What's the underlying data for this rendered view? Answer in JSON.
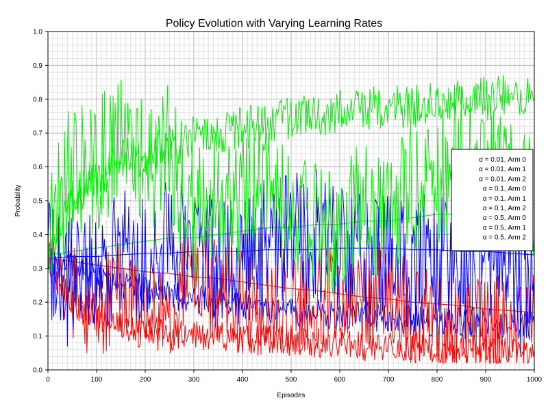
{
  "chart_data": {
    "type": "line",
    "title": "Policy Evolution with Varying Learning Rates",
    "xlabel": "Episodes",
    "ylabel": "Probability",
    "xlim": [
      0,
      1000
    ],
    "ylim": [
      0,
      1.0
    ],
    "x_ticks": [
      "0",
      "100",
      "200",
      "300",
      "400",
      "500",
      "600",
      "700",
      "800",
      "900",
      "1000"
    ],
    "y_ticks": [
      "0.0",
      "0.1",
      "0.2",
      "0.3",
      "0.4",
      "0.5",
      "0.6",
      "0.7",
      "0.8",
      "0.9",
      "1.0"
    ],
    "grid": true,
    "legend_position": "right",
    "x_anchors": [
      0,
      50,
      100,
      150,
      200,
      250,
      300,
      350,
      400,
      450,
      500,
      550,
      600,
      650,
      700,
      750,
      800,
      850,
      900,
      950,
      1000
    ],
    "series": [
      {
        "name": "α = 0.01, Arm 0",
        "color": "#ff0000",
        "noise": 0.0,
        "values": [
          0.33,
          0.32,
          0.31,
          0.3,
          0.29,
          0.285,
          0.275,
          0.27,
          0.26,
          0.25,
          0.24,
          0.235,
          0.225,
          0.215,
          0.21,
          0.2,
          0.195,
          0.19,
          0.18,
          0.175,
          0.17
        ]
      },
      {
        "name": "α = 0.01, Arm 1",
        "color": "#0000ff",
        "noise": 0.0,
        "values": [
          0.33,
          0.335,
          0.335,
          0.34,
          0.345,
          0.345,
          0.35,
          0.35,
          0.35,
          0.355,
          0.355,
          0.355,
          0.36,
          0.36,
          0.36,
          0.355,
          0.355,
          0.35,
          0.35,
          0.345,
          0.34
        ]
      },
      {
        "name": "α = 0.01, Arm 2",
        "color": "#00ee00",
        "noise": 0.0,
        "values": [
          0.34,
          0.35,
          0.36,
          0.37,
          0.38,
          0.39,
          0.39,
          0.4,
          0.41,
          0.42,
          0.42,
          0.43,
          0.43,
          0.44,
          0.44,
          0.45,
          0.46,
          0.46,
          0.47,
          0.48,
          0.49
        ]
      },
      {
        "name": "α = 0.1, Arm 0",
        "color": "#ff0000",
        "noise": 0.02,
        "values": [
          0.33,
          0.2,
          0.16,
          0.13,
          0.12,
          0.11,
          0.1,
          0.1,
          0.09,
          0.09,
          0.08,
          0.08,
          0.08,
          0.07,
          0.07,
          0.07,
          0.06,
          0.06,
          0.06,
          0.06,
          0.06
        ]
      },
      {
        "name": "α = 0.1, Arm 1",
        "color": "#0000ff",
        "noise": 0.02,
        "values": [
          0.33,
          0.3,
          0.27,
          0.25,
          0.24,
          0.22,
          0.21,
          0.2,
          0.19,
          0.18,
          0.17,
          0.17,
          0.16,
          0.16,
          0.15,
          0.15,
          0.14,
          0.14,
          0.14,
          0.13,
          0.13
        ]
      },
      {
        "name": "α = 0.1, Arm 2",
        "color": "#00ee00",
        "noise": 0.03,
        "values": [
          0.34,
          0.5,
          0.57,
          0.62,
          0.64,
          0.66,
          0.69,
          0.7,
          0.72,
          0.73,
          0.75,
          0.75,
          0.76,
          0.77,
          0.78,
          0.78,
          0.8,
          0.8,
          0.8,
          0.81,
          0.81
        ]
      },
      {
        "name": "α = 0.5, Arm 0",
        "color": "#ff0000",
        "noise": 0.07,
        "values": [
          0.3,
          0.22,
          0.18,
          0.25,
          0.2,
          0.18,
          0.3,
          0.22,
          0.2,
          0.17,
          0.18,
          0.2,
          0.22,
          0.2,
          0.25,
          0.15,
          0.14,
          0.12,
          0.13,
          0.15,
          0.14
        ]
      },
      {
        "name": "α = 0.5, Arm 1",
        "color": "#0000ff",
        "noise": 0.09,
        "values": [
          0.3,
          0.25,
          0.3,
          0.35,
          0.32,
          0.4,
          0.35,
          0.3,
          0.33,
          0.37,
          0.38,
          0.4,
          0.36,
          0.34,
          0.32,
          0.3,
          0.35,
          0.28,
          0.3,
          0.24,
          0.25
        ]
      },
      {
        "name": "α = 0.5, Arm 2",
        "color": "#00ee00",
        "noise": 0.09,
        "values": [
          0.4,
          0.6,
          0.6,
          0.7,
          0.6,
          0.65,
          0.45,
          0.5,
          0.52,
          0.55,
          0.48,
          0.42,
          0.4,
          0.5,
          0.45,
          0.55,
          0.55,
          0.65,
          0.6,
          0.55,
          0.5
        ]
      }
    ]
  }
}
